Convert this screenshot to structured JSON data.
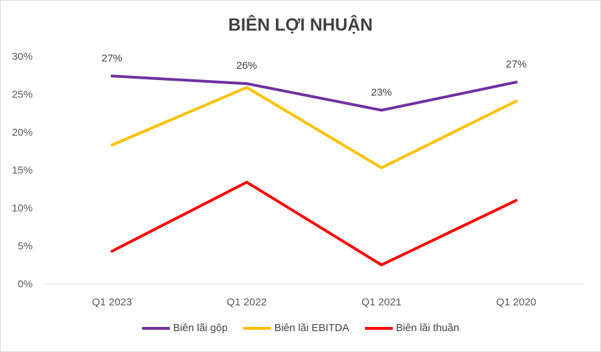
{
  "chart_data": {
    "type": "line",
    "title": "BIÊN LỢI NHUẬN",
    "categories": [
      "Q1 2023",
      "Q1 2022",
      "Q1 2021",
      "Q1 2020"
    ],
    "ylim": [
      0,
      30
    ],
    "yticks": [
      "0%",
      "5%",
      "10%",
      "15%",
      "20%",
      "25%",
      "30%"
    ],
    "y_unit": "%",
    "grid": false,
    "legend_position": "bottom",
    "series": [
      {
        "name": "Biên lãi gộp",
        "color": "#7030a0",
        "values": [
          27.4,
          26.4,
          22.9,
          26.6
        ],
        "data_labels": [
          "27%",
          "26%",
          "23%",
          "27%"
        ]
      },
      {
        "name": "Biên lãi EBITDA",
        "color": "#ffc000",
        "values": [
          18.3,
          25.9,
          15.3,
          24.1
        ]
      },
      {
        "name": "Biên lãi thuần",
        "color": "#ff0000",
        "values": [
          4.3,
          13.4,
          2.5,
          11.0
        ]
      }
    ]
  }
}
